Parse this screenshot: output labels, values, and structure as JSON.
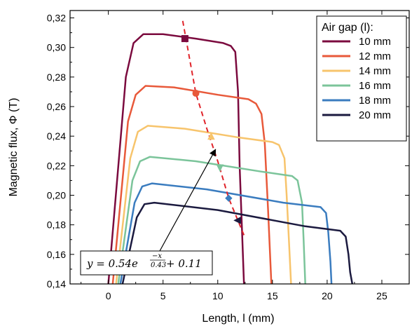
{
  "chart_data": {
    "type": "line",
    "xlabel": "Length, l (mm)",
    "ylabel": "Magnetic flux, Φ (T)",
    "xlim": [
      -3.5,
      27.5
    ],
    "ylim": [
      0.14,
      0.325
    ],
    "x_ticks": [
      0,
      5,
      10,
      15,
      20,
      25
    ],
    "x_tick_labels": [
      "0",
      "5",
      "10",
      "15",
      "20",
      "25"
    ],
    "y_ticks": [
      0.14,
      0.16,
      0.18,
      0.2,
      0.22,
      0.24,
      0.26,
      0.28,
      0.3,
      0.32
    ],
    "y_tick_labels": [
      "0,14",
      "0,16",
      "0,18",
      "0,20",
      "0,22",
      "0,24",
      "0,26",
      "0,28",
      "0,30",
      "0,32"
    ],
    "grid": false,
    "legend": {
      "title": "Air gap (l):",
      "position": "top-right"
    },
    "series": [
      {
        "name": "10 mm",
        "color": "#7b0a3e",
        "x": [
          0.0,
          1.6,
          2.3,
          3.2,
          5.0,
          8.0,
          10.5,
          11.2,
          11.6,
          11.85,
          12.0,
          12.4
        ],
        "y": [
          0.14,
          0.28,
          0.303,
          0.309,
          0.309,
          0.306,
          0.303,
          0.301,
          0.297,
          0.27,
          0.22,
          0.14
        ]
      },
      {
        "name": "12 mm",
        "color": "#e8593a",
        "x": [
          0.4,
          1.8,
          2.5,
          3.4,
          6.0,
          10.0,
          12.8,
          13.5,
          14.0,
          14.3,
          14.6,
          14.9
        ],
        "y": [
          0.14,
          0.25,
          0.268,
          0.274,
          0.273,
          0.268,
          0.265,
          0.262,
          0.255,
          0.235,
          0.19,
          0.14
        ]
      },
      {
        "name": "14 mm",
        "color": "#f7c46c",
        "x": [
          0.7,
          2.0,
          2.7,
          3.6,
          7.0,
          12.0,
          15.0,
          15.6,
          16.1,
          16.3,
          16.5,
          16.7
        ],
        "y": [
          0.14,
          0.225,
          0.243,
          0.247,
          0.245,
          0.239,
          0.236,
          0.234,
          0.225,
          0.2,
          0.17,
          0.14
        ]
      },
      {
        "name": "16 mm",
        "color": "#7bc49a",
        "x": [
          0.9,
          2.2,
          2.9,
          3.8,
          8.0,
          14.0,
          16.8,
          17.3,
          17.7,
          17.85,
          18.0
        ],
        "y": [
          0.14,
          0.21,
          0.223,
          0.226,
          0.223,
          0.216,
          0.213,
          0.21,
          0.195,
          0.17,
          0.14
        ]
      },
      {
        "name": "18 mm",
        "color": "#3a7cbf",
        "x": [
          1.1,
          2.4,
          3.1,
          4.0,
          9.0,
          16.0,
          19.4,
          19.9,
          20.1,
          20.3,
          20.4
        ],
        "y": [
          0.14,
          0.195,
          0.206,
          0.208,
          0.204,
          0.195,
          0.192,
          0.188,
          0.175,
          0.155,
          0.14
        ]
      },
      {
        "name": "20 mm",
        "color": "#1b1a3f",
        "x": [
          1.3,
          2.6,
          3.3,
          4.2,
          10.0,
          18.0,
          21.2,
          21.7,
          21.95,
          22.1,
          22.3
        ],
        "y": [
          0.14,
          0.185,
          0.194,
          0.195,
          0.19,
          0.179,
          0.176,
          0.172,
          0.16,
          0.148,
          0.14
        ]
      }
    ],
    "markers": [
      {
        "x": 7.0,
        "y": 0.306,
        "shape": "square",
        "color": "#7b0a3e"
      },
      {
        "x": 8.0,
        "y": 0.269,
        "shape": "circle",
        "color": "#e8593a"
      },
      {
        "x": 9.4,
        "y": 0.24,
        "shape": "triangle",
        "color": "#f7c46c"
      },
      {
        "x": 10.2,
        "y": 0.2185,
        "shape": "triangle-down",
        "color": "#7bc49a"
      },
      {
        "x": 11.0,
        "y": 0.198,
        "shape": "diamond",
        "color": "#3a7cbf"
      },
      {
        "x": 11.8,
        "y": 0.183,
        "shape": "triangle-left",
        "color": "#1b1a3f"
      }
    ],
    "fit_curve": {
      "formula": "y = 0.54*exp(-x/0.43) + 0.11",
      "x": [
        6.8,
        8.0,
        9.0,
        10.0,
        11.0,
        12.4
      ],
      "y": [
        0.318,
        0.269,
        0.245,
        0.223,
        0.198,
        0.173
      ],
      "color": "#e0242b",
      "style": "dashed"
    },
    "annotation": {
      "text_lhs": "y = 0.54e",
      "exponent_num": "−x",
      "exponent_den": "0.43",
      "text_rhs": " + 0.11",
      "arrow_to": [
        9.8,
        0.231
      ]
    }
  }
}
